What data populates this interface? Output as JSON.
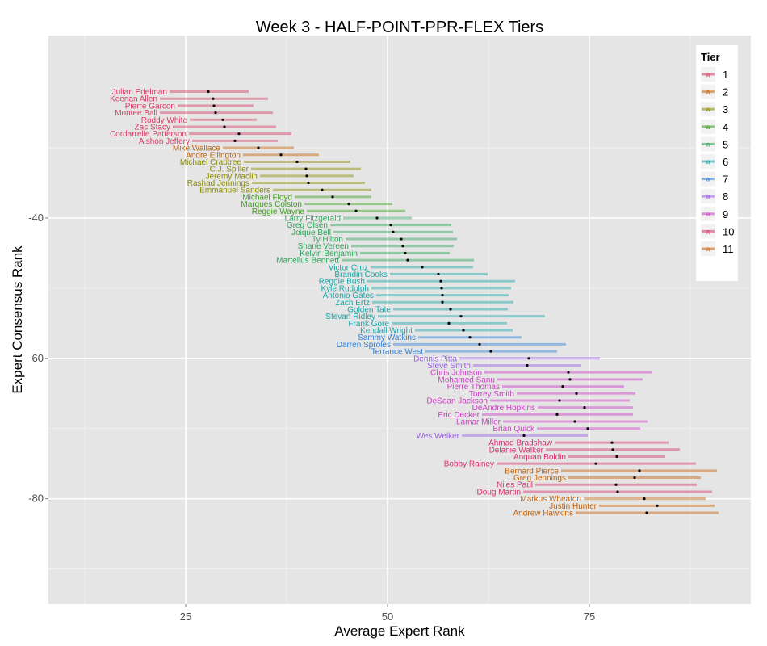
{
  "chart_data": {
    "type": "scatter",
    "title": "Week 3 - HALF-POINT-PPR-FLEX Tiers",
    "xlabel": "Average Expert Rank",
    "ylabel": "Expert Consensus Rank",
    "xlim": [
      8,
      95
    ],
    "ylim": [
      -95,
      -14
    ],
    "xticks": [
      25,
      50,
      75
    ],
    "yticks": [
      -40,
      -60,
      -80
    ],
    "grid": true,
    "legend": {
      "title": "Tier",
      "position": "right",
      "glyph": "a",
      "entries": [
        "1",
        "2",
        "3",
        "4",
        "5",
        "6",
        "7",
        "8",
        "9",
        "10",
        "11"
      ],
      "colors": [
        "#D73B63",
        "#C5620A",
        "#8A8A00",
        "#3F9E1E",
        "#2EA35A",
        "#1AA5A8",
        "#2E7FD6",
        "#9A5CE6",
        "#CE3FC5",
        "#D7306F",
        "#C5620A"
      ]
    },
    "players": [
      {
        "name": "Julian Edelman",
        "tier": 1,
        "rank": -22,
        "avg": 27.8,
        "lo": 23.0,
        "hi": 32.8
      },
      {
        "name": "Keenan Allen",
        "tier": 1,
        "rank": -23,
        "avg": 28.4,
        "lo": 21.8,
        "hi": 35.2
      },
      {
        "name": "Pierre Garcon",
        "tier": 1,
        "rank": -24,
        "avg": 28.5,
        "lo": 24.0,
        "hi": 33.4
      },
      {
        "name": "Montee Ball",
        "tier": 1,
        "rank": -25,
        "avg": 28.7,
        "lo": 21.8,
        "hi": 35.8
      },
      {
        "name": "Roddy White",
        "tier": 1,
        "rank": -26,
        "avg": 29.6,
        "lo": 25.5,
        "hi": 33.8
      },
      {
        "name": "Zac Stacy",
        "tier": 1,
        "rank": -27,
        "avg": 29.8,
        "lo": 23.4,
        "hi": 36.2
      },
      {
        "name": "Cordarrelle Patterson",
        "tier": 1,
        "rank": -28,
        "avg": 31.6,
        "lo": 25.4,
        "hi": 38.1
      },
      {
        "name": "Alshon Jeffery",
        "tier": 1,
        "rank": -29,
        "avg": 31.1,
        "lo": 25.8,
        "hi": 36.4
      },
      {
        "name": "Mike Wallace",
        "tier": 2,
        "rank": -30,
        "avg": 34.0,
        "lo": 29.6,
        "hi": 38.4
      },
      {
        "name": "Andre Ellington",
        "tier": 2,
        "rank": -31,
        "avg": 36.8,
        "lo": 32.1,
        "hi": 41.5
      },
      {
        "name": "Michael Crabtree",
        "tier": 3,
        "rank": -32,
        "avg": 38.8,
        "lo": 32.2,
        "hi": 45.4
      },
      {
        "name": "C.J. Spiller",
        "tier": 3,
        "rank": -33,
        "avg": 39.9,
        "lo": 33.1,
        "hi": 46.7
      },
      {
        "name": "Jeremy Maclin",
        "tier": 3,
        "rank": -34,
        "avg": 40.0,
        "lo": 34.2,
        "hi": 45.8
      },
      {
        "name": "Rashad Jennings",
        "tier": 3,
        "rank": -35,
        "avg": 40.2,
        "lo": 33.2,
        "hi": 47.2
      },
      {
        "name": "Emmanuel Sanders",
        "tier": 3,
        "rank": -36,
        "avg": 41.9,
        "lo": 35.8,
        "hi": 48.0
      },
      {
        "name": "Michael Floyd",
        "tier": 4,
        "rank": -37,
        "avg": 43.2,
        "lo": 38.5,
        "hi": 48.0
      },
      {
        "name": "Marques Colston",
        "tier": 4,
        "rank": -38,
        "avg": 45.2,
        "lo": 39.7,
        "hi": 50.6
      },
      {
        "name": "Reggie Wayne",
        "tier": 4,
        "rank": -39,
        "avg": 46.1,
        "lo": 40.0,
        "hi": 52.2
      },
      {
        "name": "Larry Fitzgerald",
        "tier": 5,
        "rank": -40,
        "avg": 48.7,
        "lo": 44.5,
        "hi": 53.0
      },
      {
        "name": "Greg Olsen",
        "tier": 5,
        "rank": -41,
        "avg": 50.4,
        "lo": 42.9,
        "hi": 57.9
      },
      {
        "name": "Joique Bell",
        "tier": 5,
        "rank": -42,
        "avg": 50.7,
        "lo": 43.3,
        "hi": 58.1
      },
      {
        "name": "Ty Hilton",
        "tier": 5,
        "rank": -43,
        "avg": 51.7,
        "lo": 44.8,
        "hi": 58.6
      },
      {
        "name": "Shane Vereen",
        "tier": 5,
        "rank": -44,
        "avg": 51.9,
        "lo": 45.5,
        "hi": 58.2
      },
      {
        "name": "Kelvin Benjamin",
        "tier": 5,
        "rank": -45,
        "avg": 52.2,
        "lo": 46.6,
        "hi": 57.7
      },
      {
        "name": "Martellus Bennett",
        "tier": 5,
        "rank": -46,
        "avg": 52.5,
        "lo": 44.3,
        "hi": 60.7
      },
      {
        "name": "Victor Cruz",
        "tier": 6,
        "rank": -47,
        "avg": 54.3,
        "lo": 47.9,
        "hi": 60.6
      },
      {
        "name": "Brandin Cooks",
        "tier": 6,
        "rank": -48,
        "avg": 56.3,
        "lo": 50.3,
        "hi": 62.4
      },
      {
        "name": "Reggie Bush",
        "tier": 6,
        "rank": -49,
        "avg": 56.6,
        "lo": 47.5,
        "hi": 65.8
      },
      {
        "name": "Kyle Rudolph",
        "tier": 6,
        "rank": -50,
        "avg": 56.7,
        "lo": 48.0,
        "hi": 65.3
      },
      {
        "name": "Antonio Gates",
        "tier": 6,
        "rank": -51,
        "avg": 56.8,
        "lo": 48.6,
        "hi": 65.0
      },
      {
        "name": "Zach Ertz",
        "tier": 6,
        "rank": -52,
        "avg": 56.8,
        "lo": 48.1,
        "hi": 65.6
      },
      {
        "name": "Golden Tate",
        "tier": 6,
        "rank": -53,
        "avg": 57.8,
        "lo": 50.7,
        "hi": 64.9
      },
      {
        "name": "Stevan Ridley",
        "tier": 6,
        "rank": -54,
        "avg": 59.1,
        "lo": 48.8,
        "hi": 69.5
      },
      {
        "name": "Frank Gore",
        "tier": 6,
        "rank": -55,
        "avg": 57.6,
        "lo": 50.5,
        "hi": 64.8
      },
      {
        "name": "Kendall Wright",
        "tier": 6,
        "rank": -56,
        "avg": 59.4,
        "lo": 53.4,
        "hi": 65.5
      },
      {
        "name": "Sammy Watkins",
        "tier": 7,
        "rank": -57,
        "avg": 60.2,
        "lo": 53.8,
        "hi": 66.6
      },
      {
        "name": "Darren Sproles",
        "tier": 7,
        "rank": -58,
        "avg": 61.4,
        "lo": 50.7,
        "hi": 72.1
      },
      {
        "name": "Terrance West",
        "tier": 7,
        "rank": -59,
        "avg": 62.8,
        "lo": 54.7,
        "hi": 71.0
      },
      {
        "name": "Dennis Pitta",
        "tier": 8,
        "rank": -60,
        "avg": 67.5,
        "lo": 58.9,
        "hi": 76.3
      },
      {
        "name": "Steve Smith",
        "tier": 8,
        "rank": -61,
        "avg": 67.3,
        "lo": 60.6,
        "hi": 74.0
      },
      {
        "name": "Chris Johnson",
        "tier": 9,
        "rank": -62,
        "avg": 72.4,
        "lo": 62.0,
        "hi": 82.8
      },
      {
        "name": "Mohamed Sanu",
        "tier": 9,
        "rank": -63,
        "avg": 72.6,
        "lo": 63.6,
        "hi": 81.6
      },
      {
        "name": "Pierre Thomas",
        "tier": 9,
        "rank": -64,
        "avg": 71.7,
        "lo": 64.2,
        "hi": 79.3
      },
      {
        "name": "Torrey Smith",
        "tier": 9,
        "rank": -65,
        "avg": 73.4,
        "lo": 66.0,
        "hi": 80.7
      },
      {
        "name": "DeSean Jackson",
        "tier": 9,
        "rank": -66,
        "avg": 71.3,
        "lo": 62.7,
        "hi": 80.0
      },
      {
        "name": "DeAndre Hopkins",
        "tier": 9,
        "rank": -67,
        "avg": 74.4,
        "lo": 68.6,
        "hi": 80.4
      },
      {
        "name": "Eric Decker",
        "tier": 9,
        "rank": -68,
        "avg": 71.0,
        "lo": 61.7,
        "hi": 80.4
      },
      {
        "name": "Lamar Miller",
        "tier": 9,
        "rank": -69,
        "avg": 73.2,
        "lo": 64.3,
        "hi": 82.2
      },
      {
        "name": "Brian Quick",
        "tier": 9,
        "rank": -70,
        "avg": 74.8,
        "lo": 68.5,
        "hi": 81.3
      },
      {
        "name": "Wes Welker",
        "tier": 8,
        "rank": -71,
        "avg": 66.9,
        "lo": 59.2,
        "hi": 74.8
      },
      {
        "name": "Ahmad Bradshaw",
        "tier": 10,
        "rank": -72,
        "avg": 77.8,
        "lo": 70.7,
        "hi": 84.8
      },
      {
        "name": "Delanie Walker",
        "tier": 10,
        "rank": -73,
        "avg": 77.9,
        "lo": 69.6,
        "hi": 86.2
      },
      {
        "name": "Anquan Boldin",
        "tier": 10,
        "rank": -74,
        "avg": 78.4,
        "lo": 72.4,
        "hi": 84.4
      },
      {
        "name": "Bobby Rainey",
        "tier": 10,
        "rank": -75,
        "avg": 75.8,
        "lo": 63.5,
        "hi": 88.2
      },
      {
        "name": "Bernard Pierce",
        "tier": 11,
        "rank": -76,
        "avg": 81.2,
        "lo": 71.5,
        "hi": 90.8
      },
      {
        "name": "Greg Jennings",
        "tier": 11,
        "rank": -77,
        "avg": 80.6,
        "lo": 72.4,
        "hi": 88.8
      },
      {
        "name": "Niles Paul",
        "tier": 10,
        "rank": -78,
        "avg": 78.3,
        "lo": 68.3,
        "hi": 88.3
      },
      {
        "name": "Doug Martin",
        "tier": 10,
        "rank": -79,
        "avg": 78.5,
        "lo": 66.8,
        "hi": 90.2
      },
      {
        "name": "Markus Wheaton",
        "tier": 11,
        "rank": -80,
        "avg": 81.8,
        "lo": 74.3,
        "hi": 89.4
      },
      {
        "name": "Justin Hunter",
        "tier": 11,
        "rank": -81,
        "avg": 83.4,
        "lo": 76.2,
        "hi": 90.5
      },
      {
        "name": "Andrew Hawkins",
        "tier": 11,
        "rank": -82,
        "avg": 82.1,
        "lo": 73.3,
        "hi": 91.0
      }
    ]
  }
}
